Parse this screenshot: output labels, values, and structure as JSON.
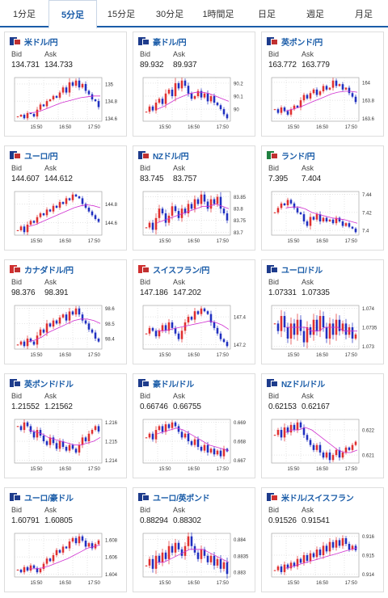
{
  "tabs": [
    "1分足",
    "5分足",
    "15分足",
    "30分足",
    "1時間足",
    "日足",
    "週足",
    "月足"
  ],
  "active_tab": 1,
  "labels": {
    "bid": "Bid",
    "ask": "Ask"
  },
  "colors": {
    "accent": "#1a5ca8",
    "up": "#e03030",
    "down": "#2030c0",
    "ma": "#d030d0"
  },
  "cards": [
    {
      "pair": "米ドル/円",
      "bid": "134.731",
      "ask": "134.733",
      "flag": [
        "#1e3c8c",
        "#c03030"
      ],
      "icon": "us-jp-flag-icon",
      "yticks": [
        "135",
        "134.8",
        "134.6"
      ],
      "xticks": [
        "15:50",
        "16:50",
        "17:50"
      ],
      "prices": [
        134.62,
        134.64,
        134.6,
        134.66,
        134.65,
        134.62,
        134.7,
        134.76,
        134.74,
        134.8,
        134.82,
        134.86,
        134.84,
        134.9,
        134.96,
        134.9,
        135.02,
        134.98,
        135.04,
        134.96,
        135.0,
        134.92,
        134.88,
        134.82,
        134.8,
        134.73
      ],
      "ma": [
        134.66,
        134.67,
        134.69,
        134.72,
        134.75,
        134.78,
        134.8,
        134.82,
        134.84,
        134.85,
        134.86,
        134.86
      ]
    },
    {
      "pair": "豪ドル/円",
      "bid": "89.932",
      "ask": "89.937",
      "flag": [
        "#1e3c8c",
        "#1e3c8c"
      ],
      "icon": "au-jp-flag-icon",
      "yticks": [
        "90.2",
        "90.1",
        "90"
      ],
      "xticks": [
        "15:50",
        "16:50",
        "17:50"
      ],
      "prices": [
        89.98,
        90.02,
        89.99,
        90.05,
        90.08,
        90.04,
        90.12,
        90.15,
        90.1,
        90.2,
        90.16,
        90.22,
        90.18,
        90.12,
        90.08,
        90.1,
        90.14,
        90.09,
        90.12,
        90.06,
        90.1,
        90.05,
        90.03,
        90.0,
        89.96,
        89.93
      ],
      "ma": [
        90.0,
        90.02,
        90.05,
        90.08,
        90.1,
        90.12,
        90.13,
        90.13,
        90.12,
        90.1,
        90.08,
        90.06
      ]
    },
    {
      "pair": "英ポンド/円",
      "bid": "163.772",
      "ask": "163.779",
      "flag": [
        "#1e3c8c",
        "#c03030"
      ],
      "icon": "gb-jp-flag-icon",
      "yticks": [
        "164",
        "163.8",
        "163.6"
      ],
      "xticks": [
        "15:50",
        "16:50",
        "17:50"
      ],
      "prices": [
        163.7,
        163.66,
        163.72,
        163.68,
        163.64,
        163.7,
        163.74,
        163.72,
        163.8,
        163.86,
        163.82,
        163.88,
        163.92,
        163.86,
        163.9,
        163.96,
        163.92,
        163.94,
        164.02,
        163.96,
        163.98,
        163.92,
        163.94,
        163.88,
        163.84,
        163.78
      ],
      "ma": [
        163.68,
        163.7,
        163.72,
        163.75,
        163.78,
        163.81,
        163.84,
        163.87,
        163.89,
        163.9,
        163.9,
        163.89
      ]
    },
    {
      "pair": "ユーロ/円",
      "bid": "144.607",
      "ask": "144.612",
      "flag": [
        "#1e3c8c",
        "#c03030"
      ],
      "icon": "eu-jp-flag-icon",
      "yticks": [
        "144.8",
        "144.6"
      ],
      "xticks": [
        "15:50",
        "16:50",
        "17:50"
      ],
      "prices": [
        144.52,
        144.56,
        144.5,
        144.58,
        144.62,
        144.6,
        144.66,
        144.7,
        144.68,
        144.74,
        144.72,
        144.78,
        144.76,
        144.82,
        144.8,
        144.86,
        144.84,
        144.9,
        144.88,
        144.86,
        144.8,
        144.76,
        144.72,
        144.68,
        144.64,
        144.61
      ],
      "ma": [
        144.56,
        144.58,
        144.61,
        144.64,
        144.67,
        144.7,
        144.73,
        144.76,
        144.78,
        144.79,
        144.78,
        144.76
      ]
    },
    {
      "pair": "NZドル/円",
      "bid": "83.745",
      "ask": "83.757",
      "flag": [
        "#1e3c8c",
        "#c03030"
      ],
      "icon": "nz-jp-flag-icon",
      "yticks": [
        "83.85",
        "83.8",
        "83.75",
        "83.7"
      ],
      "xticks": [
        "15:50",
        "16:50",
        "17:50"
      ],
      "prices": [
        83.72,
        83.74,
        83.71,
        83.76,
        83.8,
        83.78,
        83.74,
        83.77,
        83.81,
        83.79,
        83.76,
        83.8,
        83.78,
        83.82,
        83.8,
        83.84,
        83.82,
        83.86,
        83.83,
        83.8,
        83.84,
        83.82,
        83.85,
        83.8,
        83.78,
        83.75
      ],
      "ma": [
        83.74,
        83.75,
        83.76,
        83.77,
        83.78,
        83.79,
        83.8,
        83.81,
        83.81,
        83.82,
        83.81,
        83.8
      ]
    },
    {
      "pair": "ランド/円",
      "bid": "7.395",
      "ask": "7.404",
      "flag": [
        "#208040",
        "#c03030"
      ],
      "icon": "za-jp-flag-icon",
      "yticks": [
        "7.44",
        "7.42",
        "7.4"
      ],
      "xticks": [
        "15:50",
        "16:50",
        "17:50"
      ],
      "prices": [
        7.42,
        7.425,
        7.43,
        7.428,
        7.434,
        7.43,
        7.425,
        7.42,
        7.418,
        7.41,
        7.405,
        7.415,
        7.412,
        7.418,
        7.41,
        7.414,
        7.41,
        7.412,
        7.408,
        7.414,
        7.41,
        7.405,
        7.408,
        7.404,
        7.402,
        7.398
      ],
      "ma": [
        7.425,
        7.426,
        7.426,
        7.424,
        7.42,
        7.418,
        7.416,
        7.414,
        7.413,
        7.412,
        7.41,
        7.408
      ]
    },
    {
      "pair": "カナダドル/円",
      "bid": "98.376",
      "ask": "98.391",
      "flag": [
        "#d03030",
        "#c03030"
      ],
      "icon": "ca-jp-flag-icon",
      "yticks": [
        "98.6",
        "98.5",
        "98.4"
      ],
      "xticks": [
        "15:50",
        "16:50",
        "17:50"
      ],
      "prices": [
        98.36,
        98.38,
        98.35,
        98.4,
        98.38,
        98.36,
        98.42,
        98.46,
        98.44,
        98.5,
        98.48,
        98.52,
        98.5,
        98.54,
        98.56,
        98.52,
        98.58,
        98.56,
        98.6,
        98.56,
        98.52,
        98.5,
        98.46,
        98.44,
        98.4,
        98.38
      ],
      "ma": [
        98.38,
        98.39,
        98.41,
        98.44,
        98.46,
        98.48,
        98.5,
        98.52,
        98.53,
        98.53,
        98.52,
        98.5
      ]
    },
    {
      "pair": "スイスフラン/円",
      "bid": "147.186",
      "ask": "147.202",
      "flag": [
        "#d03030",
        "#c03030"
      ],
      "icon": "ch-jp-flag-icon",
      "yticks": [
        "147.4",
        "147.2"
      ],
      "xticks": [
        "15:50",
        "16:50",
        "17:50"
      ],
      "prices": [
        147.28,
        147.32,
        147.3,
        147.26,
        147.3,
        147.34,
        147.3,
        147.36,
        147.32,
        147.28,
        147.24,
        147.3,
        147.36,
        147.4,
        147.38,
        147.44,
        147.42,
        147.46,
        147.44,
        147.42,
        147.36,
        147.32,
        147.28,
        147.24,
        147.22,
        147.19
      ],
      "ma": [
        147.3,
        147.3,
        147.31,
        147.32,
        147.33,
        147.34,
        147.35,
        147.36,
        147.37,
        147.36,
        147.34,
        147.31
      ]
    },
    {
      "pair": "ユーロ/ドル",
      "bid": "1.07331",
      "ask": "1.07335",
      "flag": [
        "#1e3c8c",
        "#1e3c8c"
      ],
      "icon": "eu-us-flag-icon",
      "yticks": [
        "1.074",
        "1.0735",
        "1.073"
      ],
      "xticks": [
        "15:50",
        "16:50",
        "17:50"
      ],
      "prices": [
        1.0736,
        1.0734,
        1.0738,
        1.0735,
        1.0732,
        1.0736,
        1.0733,
        1.0737,
        1.0734,
        1.0731,
        1.0735,
        1.0733,
        1.0737,
        1.0734,
        1.0738,
        1.0735,
        1.0732,
        1.0736,
        1.0733,
        1.0737,
        1.0734,
        1.0736,
        1.0733,
        1.0735,
        1.0732,
        1.07331
      ],
      "ma": [
        1.0735,
        1.0735,
        1.0735,
        1.0735,
        1.0734,
        1.0734,
        1.0735,
        1.0735,
        1.0735,
        1.0734,
        1.0734,
        1.0734
      ]
    },
    {
      "pair": "英ポンド/ドル",
      "bid": "1.21552",
      "ask": "1.21562",
      "flag": [
        "#1e3c8c",
        "#1e3c8c"
      ],
      "icon": "gb-us-flag-icon",
      "yticks": [
        "1.216",
        "1.215",
        "1.214"
      ],
      "xticks": [
        "15:50",
        "16:50",
        "17:50"
      ],
      "prices": [
        1.2158,
        1.2156,
        1.216,
        1.2158,
        1.2155,
        1.2152,
        1.2156,
        1.2153,
        1.215,
        1.2148,
        1.2152,
        1.2149,
        1.2146,
        1.215,
        1.2147,
        1.2145,
        1.2148,
        1.2146,
        1.2144,
        1.2148,
        1.2152,
        1.215,
        1.2154,
        1.2156,
        1.2158,
        1.21552
      ],
      "ma": [
        1.2156,
        1.2155,
        1.2154,
        1.2152,
        1.2151,
        1.215,
        1.2149,
        1.2148,
        1.2148,
        1.2149,
        1.215,
        1.2152
      ]
    },
    {
      "pair": "豪ドル/ドル",
      "bid": "0.66746",
      "ask": "0.66755",
      "flag": [
        "#1e3c8c",
        "#1e3c8c"
      ],
      "icon": "au-us-flag-icon",
      "yticks": [
        "0.669",
        "0.668",
        "0.667"
      ],
      "xticks": [
        "15:50",
        "16:50",
        "17:50"
      ],
      "prices": [
        0.6682,
        0.6684,
        0.6681,
        0.6686,
        0.6688,
        0.6685,
        0.6689,
        0.6687,
        0.669,
        0.6688,
        0.6685,
        0.6682,
        0.6684,
        0.668,
        0.6678,
        0.6681,
        0.6677,
        0.6675,
        0.6678,
        0.6674,
        0.6676,
        0.6673,
        0.6675,
        0.6672,
        0.6676,
        0.66746
      ],
      "ma": [
        0.6684,
        0.6685,
        0.6686,
        0.6687,
        0.6686,
        0.6684,
        0.6682,
        0.668,
        0.6678,
        0.6677,
        0.6676,
        0.6675
      ]
    },
    {
      "pair": "NZドル/ドル",
      "bid": "0.62153",
      "ask": "0.62167",
      "flag": [
        "#1e3c8c",
        "#1e3c8c"
      ],
      "icon": "nz-us-flag-icon",
      "yticks": [
        "0.622",
        "0.621"
      ],
      "xticks": [
        "15:50",
        "16:50",
        "17:50"
      ],
      "prices": [
        0.6218,
        0.622,
        0.6217,
        0.6221,
        0.6219,
        0.6222,
        0.622,
        0.6223,
        0.6221,
        0.6218,
        0.6216,
        0.6214,
        0.6212,
        0.6214,
        0.6211,
        0.6209,
        0.6211,
        0.6208,
        0.621,
        0.6212,
        0.6209,
        0.6211,
        0.6213,
        0.6212,
        0.6214,
        0.62153
      ],
      "ma": [
        0.6219,
        0.622,
        0.622,
        0.6221,
        0.622,
        0.6218,
        0.6216,
        0.6214,
        0.6212,
        0.6211,
        0.6211,
        0.6212
      ]
    },
    {
      "pair": "ユーロ/豪ドル",
      "bid": "1.60791",
      "ask": "1.60805",
      "flag": [
        "#1e3c8c",
        "#1e3c8c"
      ],
      "icon": "eu-au-flag-icon",
      "yticks": [
        "1.608",
        "1.606",
        "1.604"
      ],
      "xticks": [
        "15:50",
        "16:50",
        "17:50"
      ],
      "prices": [
        1.6045,
        1.6042,
        1.6048,
        1.6044,
        1.605,
        1.6047,
        1.6042,
        1.6046,
        1.6052,
        1.6058,
        1.6055,
        1.6062,
        1.6068,
        1.6065,
        1.6072,
        1.607,
        1.6078,
        1.6082,
        1.6076,
        1.6084,
        1.6079,
        1.6072,
        1.6076,
        1.607,
        1.6075,
        1.60791
      ],
      "ma": [
        1.6046,
        1.6046,
        1.6047,
        1.6049,
        1.6052,
        1.6055,
        1.6058,
        1.6062,
        1.6066,
        1.607,
        1.6072,
        1.6074
      ]
    },
    {
      "pair": "ユーロ/英ポンド",
      "bid": "0.88294",
      "ask": "0.88302",
      "flag": [
        "#1e3c8c",
        "#1e3c8c"
      ],
      "icon": "eu-gb-flag-icon",
      "yticks": [
        "0.884",
        "0.8835",
        "0.883"
      ],
      "xticks": [
        "15:50",
        "16:50",
        "17:50"
      ],
      "prices": [
        0.8832,
        0.8834,
        0.8831,
        0.8835,
        0.8833,
        0.8836,
        0.8834,
        0.8838,
        0.8836,
        0.8839,
        0.8837,
        0.8835,
        0.8838,
        0.8841,
        0.8838,
        0.8836,
        0.8834,
        0.8837,
        0.8835,
        0.8833,
        0.8835,
        0.8832,
        0.8834,
        0.8831,
        0.8833,
        0.88294
      ],
      "ma": [
        0.8833,
        0.8833,
        0.8834,
        0.8835,
        0.8836,
        0.8837,
        0.8837,
        0.8837,
        0.8836,
        0.8835,
        0.8834,
        0.8833
      ]
    },
    {
      "pair": "米ドル/スイスフラン",
      "bid": "0.91526",
      "ask": "0.91541",
      "flag": [
        "#1e3c8c",
        "#d03030"
      ],
      "icon": "us-ch-flag-icon",
      "yticks": [
        "0.916",
        "0.915",
        "0.914"
      ],
      "xticks": [
        "15:50",
        "16:50",
        "17:50"
      ],
      "prices": [
        0.9142,
        0.9144,
        0.9141,
        0.9145,
        0.9143,
        0.9146,
        0.9144,
        0.9148,
        0.9146,
        0.915,
        0.9147,
        0.9151,
        0.9149,
        0.9153,
        0.915,
        0.9155,
        0.9152,
        0.9157,
        0.9154,
        0.9158,
        0.9155,
        0.9159,
        0.9156,
        0.9153,
        0.9155,
        0.91526
      ],
      "ma": [
        0.9143,
        0.9144,
        0.9145,
        0.9146,
        0.9147,
        0.9148,
        0.9149,
        0.915,
        0.9151,
        0.9152,
        0.9153,
        0.9154
      ]
    }
  ]
}
